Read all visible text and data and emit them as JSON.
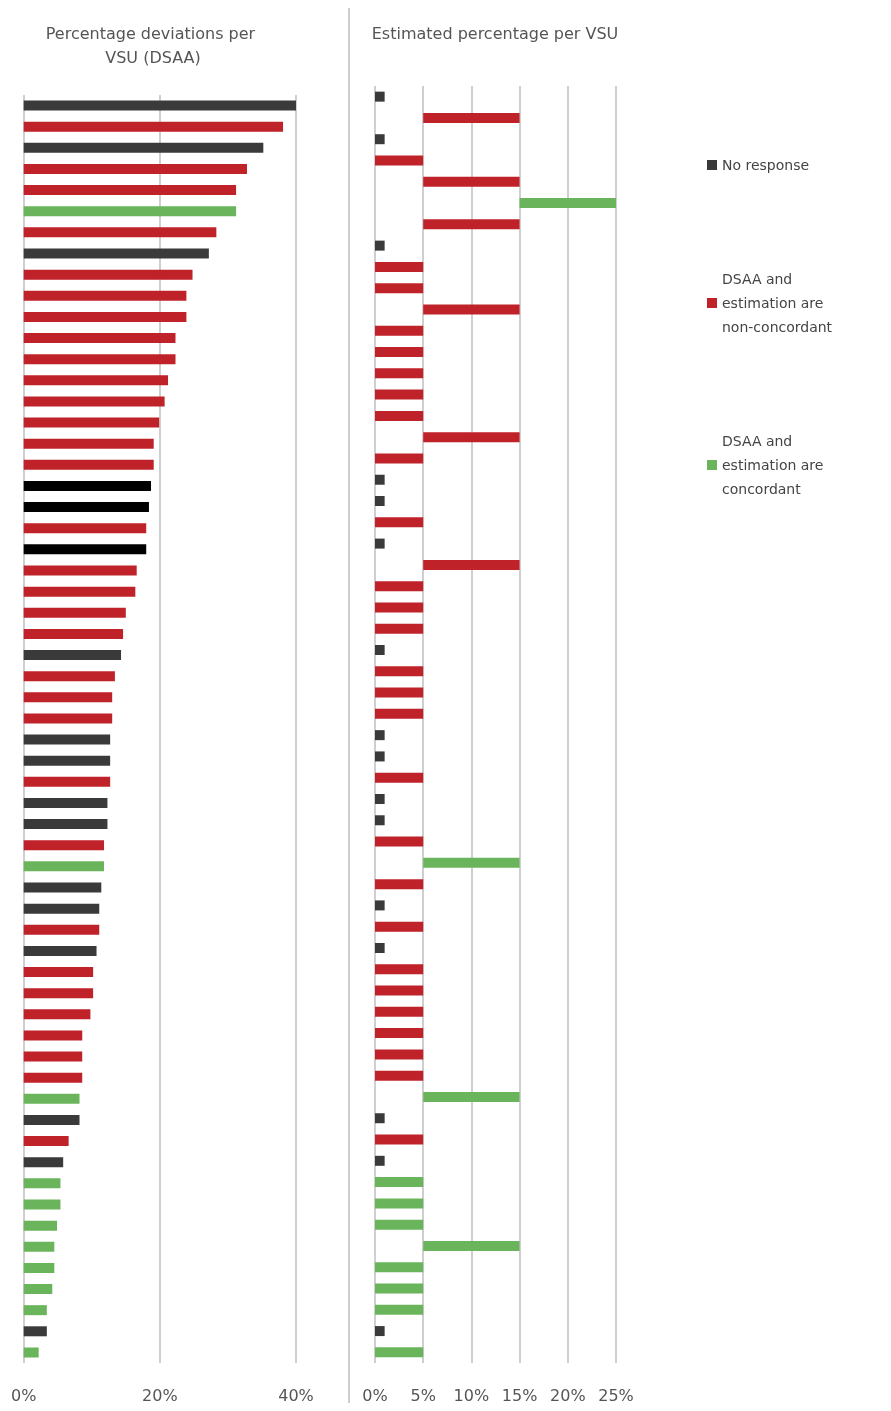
{
  "chart_data": [
    {
      "type": "bar",
      "orientation": "horizontal",
      "title": "Percentage deviations per VSU (DSAA)",
      "categories": [
        null,
        null,
        null,
        null,
        null,
        null,
        null,
        null,
        null,
        null,
        null,
        null,
        null,
        null,
        null,
        null,
        null,
        null,
        null,
        null,
        null,
        null,
        null,
        null,
        null,
        null,
        null,
        null,
        null,
        null,
        null,
        null,
        null,
        null,
        null,
        null,
        null,
        null,
        null,
        null,
        null,
        null,
        null,
        null,
        null,
        null,
        null,
        null,
        null,
        null,
        null,
        null,
        null,
        null,
        null,
        null,
        null,
        null,
        null,
        null
      ],
      "values": [
        40.0,
        38.1,
        35.2,
        32.8,
        31.2,
        31.2,
        28.3,
        27.2,
        24.8,
        23.9,
        23.9,
        22.3,
        22.3,
        21.2,
        20.7,
        19.9,
        19.1,
        19.1,
        18.7,
        18.4,
        18.0,
        18.0,
        16.6,
        16.4,
        15.0,
        14.6,
        14.3,
        13.4,
        13.0,
        13.0,
        12.7,
        12.7,
        12.7,
        12.3,
        12.3,
        11.8,
        11.8,
        11.4,
        11.1,
        11.1,
        10.7,
        10.2,
        10.2,
        9.8,
        8.6,
        8.6,
        8.6,
        8.2,
        8.2,
        6.6,
        5.8,
        5.4,
        5.4,
        4.9,
        4.5,
        4.5,
        4.2,
        3.4,
        3.4,
        2.2
      ],
      "colors": [
        "#3a3a3a",
        "#c0222a",
        "#3a3a3a",
        "#c0222a",
        "#c0222a",
        "#6ab55b",
        "#c0222a",
        "#3a3a3a",
        "#c0222a",
        "#c0222a",
        "#c0222a",
        "#c0222a",
        "#c0222a",
        "#c0222a",
        "#c0222a",
        "#c0222a",
        "#c0222a",
        "#c0222a",
        "#000000",
        "#000000",
        "#c0222a",
        "#000000",
        "#c0222a",
        "#c0222a",
        "#c0222a",
        "#c0222a",
        "#3a3a3a",
        "#c0222a",
        "#c0222a",
        "#c0222a",
        "#3a3a3a",
        "#3a3a3a",
        "#c0222a",
        "#3a3a3a",
        "#3a3a3a",
        "#c0222a",
        "#6ab55b",
        "#3a3a3a",
        "#3a3a3a",
        "#c0222a",
        "#3a3a3a",
        "#c0222a",
        "#c0222a",
        "#c0222a",
        "#c0222a",
        "#c0222a",
        "#c0222a",
        "#6ab55b",
        "#3a3a3a",
        "#c0222a",
        "#3a3a3a",
        "#6ab55b",
        "#6ab55b",
        "#6ab55b",
        "#6ab55b",
        "#6ab55b",
        "#6ab55b",
        "#6ab55b",
        "#3a3a3a",
        "#6ab55b"
      ],
      "xlim": [
        0,
        40
      ],
      "xticks": [
        {
          "value": 0,
          "label": "0%"
        },
        {
          "value": 20,
          "label": "20%"
        },
        {
          "value": 40,
          "label": "40%"
        }
      ],
      "grid": "x"
    },
    {
      "type": "bar",
      "orientation": "horizontal",
      "title": "Estimated percentage per VSU",
      "categories": [
        null,
        null,
        null,
        null,
        null,
        null,
        null,
        null,
        null,
        null,
        null,
        null,
        null,
        null,
        null,
        null,
        null,
        null,
        null,
        null,
        null,
        null,
        null,
        null,
        null,
        null,
        null,
        null,
        null,
        null,
        null,
        null,
        null,
        null,
        null,
        null,
        null,
        null,
        null,
        null,
        null,
        null,
        null,
        null,
        null,
        null,
        null,
        null,
        null,
        null,
        null,
        null,
        null,
        null,
        null,
        null,
        null,
        null,
        null,
        null
      ],
      "series": [
        {
          "name": "No response",
          "color": "#3a3a3a",
          "base": [
            0,
            null,
            0,
            null,
            null,
            null,
            null,
            0,
            null,
            null,
            null,
            null,
            null,
            null,
            null,
            null,
            null,
            null,
            0,
            0,
            null,
            0,
            null,
            null,
            null,
            null,
            0,
            null,
            null,
            null,
            0,
            0,
            null,
            0,
            0,
            null,
            null,
            null,
            0,
            null,
            0,
            null,
            null,
            null,
            null,
            null,
            null,
            null,
            0,
            null,
            0,
            null,
            null,
            null,
            null,
            null,
            null,
            null,
            0,
            null
          ],
          "values": [
            1,
            null,
            1,
            null,
            null,
            null,
            null,
            1,
            null,
            null,
            null,
            null,
            null,
            null,
            null,
            null,
            null,
            null,
            1,
            1,
            null,
            1,
            null,
            null,
            null,
            null,
            1,
            null,
            null,
            null,
            1,
            1,
            null,
            1,
            1,
            null,
            null,
            null,
            1,
            null,
            1,
            null,
            null,
            null,
            null,
            null,
            null,
            null,
            1,
            null,
            1,
            null,
            null,
            null,
            null,
            null,
            null,
            null,
            1,
            null
          ]
        },
        {
          "name": "DSAA and estimation are non-concordant",
          "color": "#c0222a",
          "base": [
            null,
            5,
            null,
            0,
            5,
            null,
            5,
            null,
            0,
            0,
            5,
            0,
            0,
            0,
            0,
            0,
            5,
            0,
            null,
            null,
            0,
            null,
            5,
            0,
            0,
            0,
            null,
            0,
            0,
            0,
            null,
            null,
            0,
            null,
            null,
            0,
            null,
            0,
            null,
            0,
            null,
            0,
            0,
            0,
            0,
            0,
            0,
            null,
            null,
            0,
            null,
            null,
            null,
            null,
            null,
            null,
            null,
            null,
            null,
            null
          ],
          "values": [
            null,
            10,
            null,
            5,
            10,
            null,
            10,
            null,
            5,
            5,
            10,
            5,
            5,
            5,
            5,
            5,
            10,
            5,
            null,
            null,
            5,
            null,
            10,
            5,
            5,
            5,
            null,
            5,
            5,
            5,
            null,
            null,
            5,
            null,
            null,
            5,
            null,
            5,
            null,
            5,
            null,
            5,
            5,
            5,
            5,
            5,
            5,
            null,
            null,
            5,
            null,
            null,
            null,
            null,
            null,
            null,
            null,
            null,
            null,
            null
          ]
        },
        {
          "name": "DSAA and estimation are concordant",
          "color": "#6ab55b",
          "base": [
            null,
            null,
            null,
            null,
            null,
            15,
            null,
            null,
            null,
            null,
            null,
            null,
            null,
            null,
            null,
            null,
            null,
            null,
            null,
            null,
            null,
            null,
            null,
            null,
            null,
            null,
            null,
            null,
            null,
            null,
            null,
            null,
            null,
            null,
            null,
            null,
            5,
            null,
            null,
            null,
            null,
            null,
            null,
            null,
            null,
            null,
            null,
            5,
            null,
            null,
            null,
            0,
            0,
            0,
            5,
            0,
            0,
            0,
            null,
            0
          ],
          "values": [
            null,
            null,
            null,
            null,
            null,
            10,
            null,
            null,
            null,
            null,
            null,
            null,
            null,
            null,
            null,
            null,
            null,
            null,
            null,
            null,
            null,
            null,
            null,
            null,
            null,
            null,
            null,
            null,
            null,
            null,
            null,
            null,
            null,
            null,
            null,
            null,
            10,
            null,
            null,
            null,
            null,
            null,
            null,
            null,
            null,
            null,
            null,
            10,
            null,
            null,
            null,
            5,
            5,
            5,
            10,
            5,
            5,
            5,
            null,
            5
          ]
        }
      ],
      "xlim": [
        0,
        25
      ],
      "xticks": [
        {
          "value": 0,
          "label": "0%"
        },
        {
          "value": 5,
          "label": "5%"
        },
        {
          "value": 10,
          "label": "10%"
        },
        {
          "value": 15,
          "label": "15%"
        },
        {
          "value": 20,
          "label": "20%"
        },
        {
          "value": 25,
          "label": "25%"
        }
      ],
      "grid": "x",
      "legend": "right"
    }
  ]
}
